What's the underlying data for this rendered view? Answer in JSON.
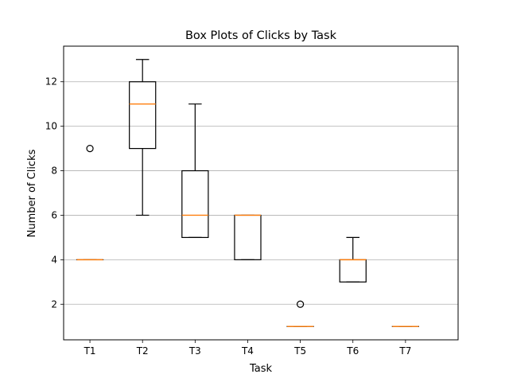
{
  "chart_data": {
    "type": "box",
    "title": "Box Plots of Clicks by Task",
    "xlabel": "Task",
    "ylabel": "Number of Clicks",
    "ylim": [
      0.4,
      13.6
    ],
    "yticks": [
      2,
      4,
      6,
      8,
      10,
      12
    ],
    "grid": "y",
    "colors": {
      "box": "#000000",
      "median": "#ff7f0e",
      "grid": "#b0b0b0"
    },
    "categories": [
      "T1",
      "T2",
      "T3",
      "T4",
      "T5",
      "T6",
      "T7"
    ],
    "boxes": [
      {
        "q1": 4,
        "median": 4,
        "q3": 4,
        "whisker_low": 4,
        "whisker_high": 4,
        "outliers": [
          9
        ]
      },
      {
        "q1": 9,
        "median": 11,
        "q3": 12,
        "whisker_low": 6,
        "whisker_high": 13,
        "outliers": []
      },
      {
        "q1": 5,
        "median": 6,
        "q3": 8,
        "whisker_low": 5,
        "whisker_high": 11,
        "outliers": []
      },
      {
        "q1": 4,
        "median": 6,
        "q3": 6,
        "whisker_low": 4,
        "whisker_high": 6,
        "outliers": []
      },
      {
        "q1": 1,
        "median": 1,
        "q3": 1,
        "whisker_low": 1,
        "whisker_high": 1,
        "outliers": [
          2
        ]
      },
      {
        "q1": 3,
        "median": 4,
        "q3": 4,
        "whisker_low": 3,
        "whisker_high": 5,
        "outliers": []
      },
      {
        "q1": 1,
        "median": 1,
        "q3": 1,
        "whisker_low": 1,
        "whisker_high": 1,
        "outliers": []
      }
    ]
  }
}
